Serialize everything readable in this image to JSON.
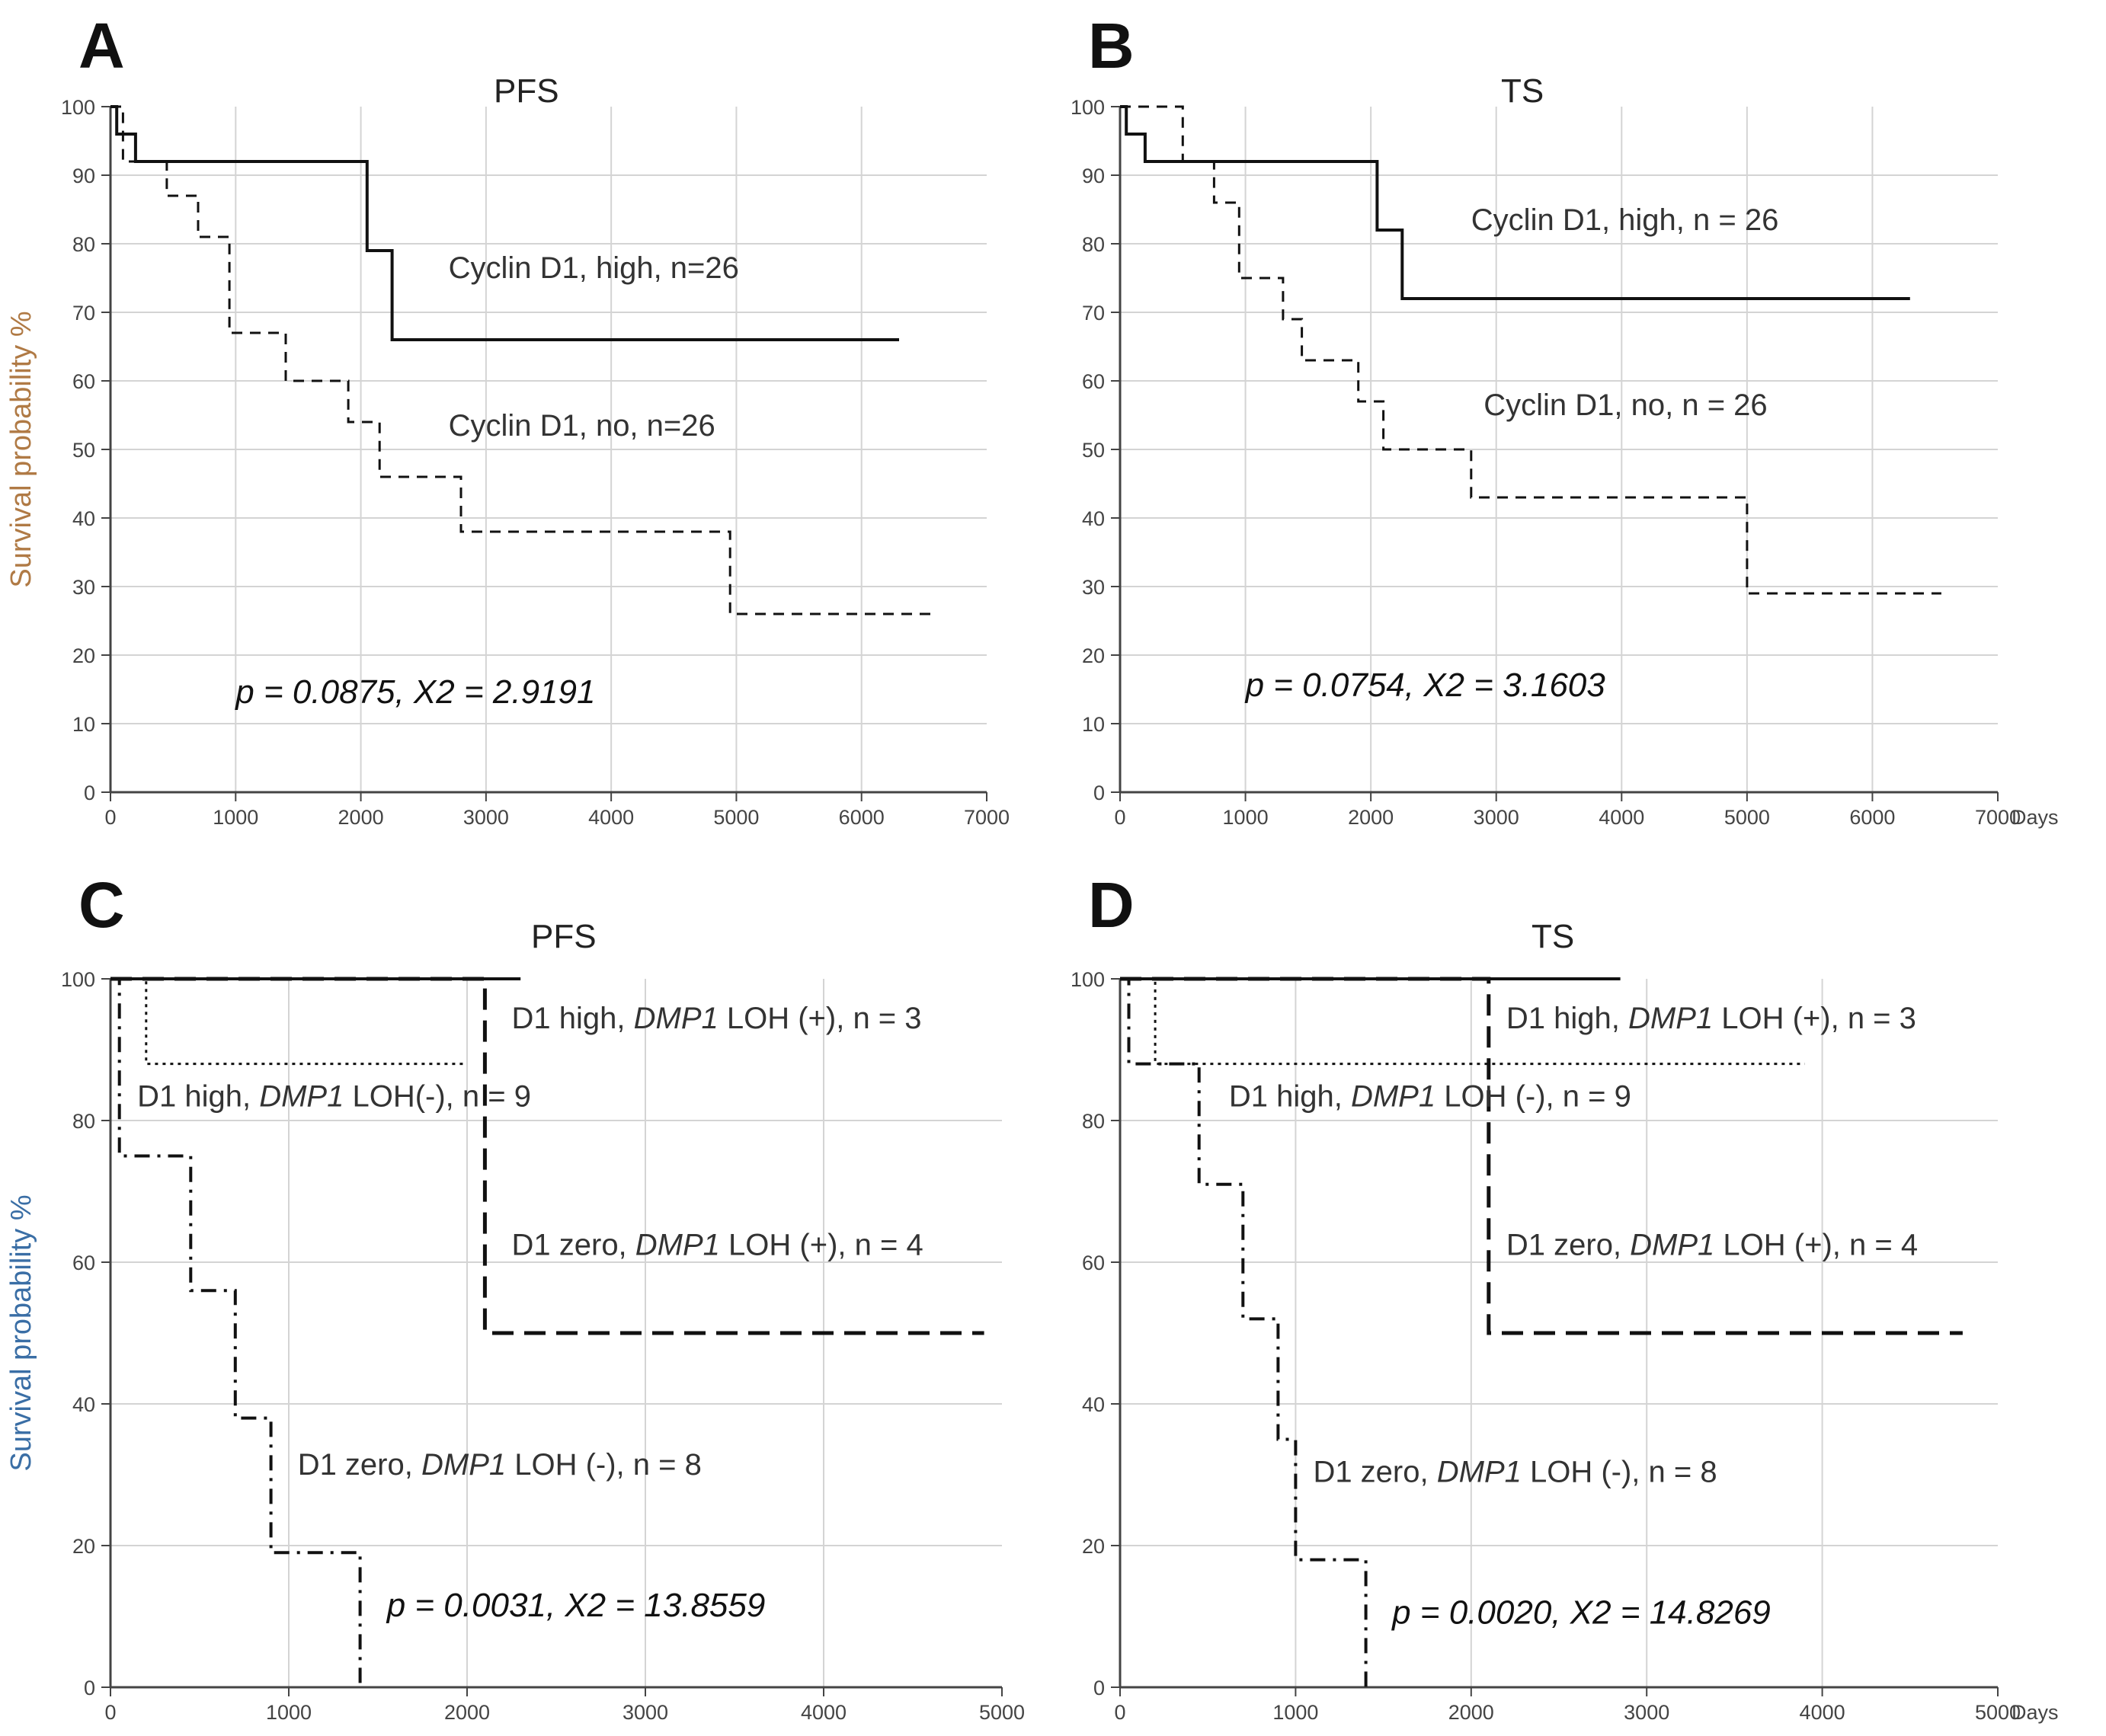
{
  "figure_x_unit": "Days",
  "chart_data": [
    {
      "id": "A",
      "type": "line",
      "title": "PFS",
      "ylabel": "Survival probability %",
      "xlabel": "",
      "xlim": [
        0,
        7000
      ],
      "ylim": [
        0,
        100
      ],
      "xticks": [
        0,
        1000,
        2000,
        3000,
        4000,
        5000,
        6000,
        7000
      ],
      "yticks": [
        0,
        10,
        20,
        30,
        40,
        50,
        60,
        70,
        80,
        90,
        100
      ],
      "show_unit": false,
      "stat": "p = 0.0875, X2 = 2.9191",
      "series": [
        {
          "name": "Cyclin D1, high, n=26",
          "style": "solid",
          "x": [
            0,
            50,
            50,
            100,
            100,
            200,
            200,
            2050,
            2050,
            2250,
            2250,
            6300
          ],
          "y": [
            100,
            100,
            96,
            96,
            96,
            96,
            92,
            92,
            79,
            79,
            66,
            66
          ]
        },
        {
          "name": "Cyclin D1, no, n=26",
          "style": "dashed",
          "x": [
            0,
            100,
            100,
            450,
            450,
            700,
            700,
            950,
            950,
            1400,
            1400,
            1900,
            1900,
            2150,
            2150,
            2800,
            2800,
            4950,
            4950,
            6550
          ],
          "y": [
            100,
            100,
            92,
            92,
            87,
            87,
            81,
            81,
            67,
            67,
            60,
            60,
            54,
            54,
            46,
            46,
            38,
            38,
            26,
            26
          ]
        }
      ],
      "labels": [
        {
          "text": "Cyclin D1, high, n=26",
          "x": 2700,
          "y": 75
        },
        {
          "text": "Cyclin D1, no, n=26",
          "x": 2700,
          "y": 52
        }
      ]
    },
    {
      "id": "B",
      "type": "line",
      "title": "TS",
      "ylabel": "",
      "xlabel": "Days",
      "xlim": [
        0,
        7000
      ],
      "ylim": [
        0,
        100
      ],
      "xticks": [
        0,
        1000,
        2000,
        3000,
        4000,
        5000,
        6000,
        7000
      ],
      "yticks": [
        0,
        10,
        20,
        30,
        40,
        50,
        60,
        70,
        80,
        90,
        100
      ],
      "show_unit": true,
      "stat": "p = 0.0754, X2 = 3.1603",
      "series": [
        {
          "name": "Cyclin D1, high, n = 26",
          "style": "solid",
          "x": [
            0,
            50,
            50,
            200,
            200,
            2050,
            2050,
            2250,
            2250,
            6300
          ],
          "y": [
            100,
            100,
            96,
            96,
            92,
            92,
            82,
            82,
            72,
            72
          ]
        },
        {
          "name": "Cyclin D1, no, n = 26",
          "style": "dashed",
          "x": [
            0,
            500,
            500,
            750,
            750,
            950,
            950,
            1300,
            1300,
            1450,
            1450,
            1900,
            1900,
            2100,
            2100,
            2800,
            2800,
            5000,
            5000,
            6550
          ],
          "y": [
            100,
            100,
            92,
            92,
            86,
            86,
            75,
            75,
            69,
            69,
            63,
            63,
            57,
            57,
            50,
            50,
            43,
            43,
            29,
            29
          ]
        }
      ],
      "labels": [
        {
          "text": "Cyclin D1, high, n = 26",
          "x": 2800,
          "y": 82
        },
        {
          "text": "Cyclin D1, no, n = 26",
          "x": 2900,
          "y": 55
        }
      ]
    },
    {
      "id": "C",
      "type": "line",
      "title": "PFS",
      "ylabel": "Survival probability %",
      "xlabel": "",
      "xlim": [
        0,
        5000
      ],
      "ylim": [
        0,
        100
      ],
      "xticks": [
        0,
        1000,
        2000,
        3000,
        4000,
        5000
      ],
      "yticks": [
        0,
        20,
        40,
        60,
        80,
        100
      ],
      "show_unit": false,
      "stat": "p = 0.0031, X2 = 13.8559",
      "series": [
        {
          "name": "D1 high, DMP1 LOH (+), n = 3",
          "style": "solid",
          "x": [
            0,
            2300
          ],
          "y": [
            100,
            100
          ]
        },
        {
          "name": "D1 high, DMP1 LOH (-), n = 9",
          "style": "dotted",
          "x": [
            0,
            200,
            200,
            2000
          ],
          "y": [
            100,
            100,
            88,
            88
          ]
        },
        {
          "name": "D1 zero, DMP1 LOH (+), n = 4",
          "style": "longdash",
          "x": [
            0,
            2100,
            2100,
            4900
          ],
          "y": [
            100,
            100,
            50,
            50
          ]
        },
        {
          "name": "D1 zero, DMP1 LOH (-), n = 8",
          "style": "dashdot",
          "x": [
            0,
            50,
            50,
            450,
            450,
            700,
            700,
            900,
            900,
            1400,
            1400
          ],
          "y": [
            100,
            100,
            75,
            75,
            56,
            56,
            38,
            38,
            19,
            19,
            0
          ]
        }
      ],
      "labels": [
        {
          "prefix": "D1 high, ",
          "gene": "DMP1",
          "suffix": " LOH (+), n = 3",
          "x": 2250,
          "y": 93
        },
        {
          "prefix": "D1 high, ",
          "gene": "DMP1",
          "suffix": " LOH(-), n = 9",
          "x": 150,
          "y": 82
        },
        {
          "prefix": "D1 zero, ",
          "gene": "DMP1",
          "suffix": " LOH (+), n = 4",
          "x": 2250,
          "y": 61
        },
        {
          "prefix": "D1 zero, ",
          "gene": "DMP1",
          "suffix": " LOH (-), n = 8",
          "x": 1050,
          "y": 30
        }
      ]
    },
    {
      "id": "D",
      "type": "line",
      "title": "TS",
      "ylabel": "",
      "xlabel": "Days",
      "xlim": [
        0,
        5000
      ],
      "ylim": [
        0,
        100
      ],
      "xticks": [
        0,
        1000,
        2000,
        3000,
        4000,
        5000
      ],
      "yticks": [
        0,
        20,
        40,
        60,
        80,
        100
      ],
      "show_unit": true,
      "stat": "p = 0.0020, X2 = 14.8269",
      "series": [
        {
          "name": "D1 high, DMP1 LOH (+), n = 3",
          "style": "solid",
          "x": [
            0,
            2850
          ],
          "y": [
            100,
            100
          ]
        },
        {
          "name": "D1 high, DMP1 LOH (-), n = 9",
          "style": "dotted",
          "x": [
            0,
            200,
            200,
            3900
          ],
          "y": [
            100,
            100,
            88,
            88
          ]
        },
        {
          "name": "D1 zero, DMP1 LOH (+), n = 4",
          "style": "longdash",
          "x": [
            0,
            2100,
            2100,
            4800
          ],
          "y": [
            100,
            100,
            50,
            50
          ]
        },
        {
          "name": "D1 zero, DMP1 LOH (-), n = 8",
          "style": "dashdot",
          "x": [
            0,
            50,
            50,
            450,
            450,
            700,
            700,
            900,
            900,
            1000,
            1000,
            1400,
            1400
          ],
          "y": [
            100,
            100,
            88,
            88,
            71,
            71,
            52,
            52,
            35,
            35,
            18,
            18,
            0
          ]
        }
      ],
      "labels": [
        {
          "prefix": "D1 high, ",
          "gene": "DMP1",
          "suffix": " LOH (+), n = 3",
          "x": 2200,
          "y": 93
        },
        {
          "prefix": "D1 high, ",
          "gene": "DMP1",
          "suffix": " LOH (-), n = 9",
          "x": 620,
          "y": 82
        },
        {
          "prefix": "D1 zero, ",
          "gene": "DMP1",
          "suffix": " LOH (+), n = 4",
          "x": 2200,
          "y": 61
        },
        {
          "prefix": "D1 zero, ",
          "gene": "DMP1",
          "suffix": " LOH (-), n = 8",
          "x": 1100,
          "y": 29
        }
      ]
    }
  ]
}
